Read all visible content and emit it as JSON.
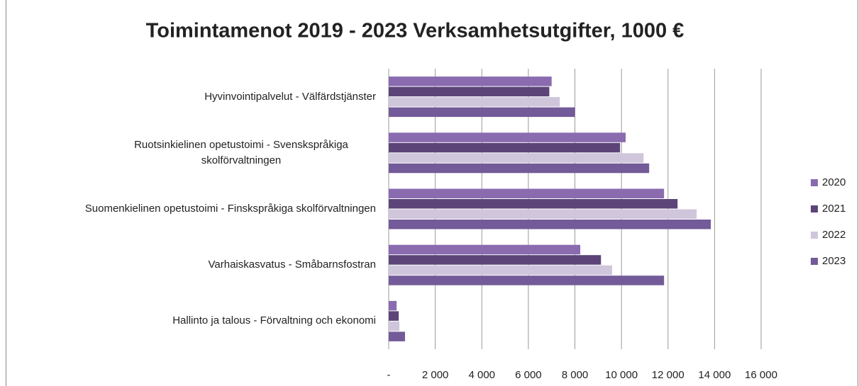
{
  "chart_data": {
    "type": "bar",
    "orientation": "horizontal",
    "title": "Toimintamenot 2019 - 2023 Verksamhetsutgifter, 1000 €",
    "categories": [
      "Hyvinvointipalvelut - Välfärdstjänster",
      "Ruotsinkielinen opetustoimi - Svenskspråkiga skolförvaltningen",
      "Suomenkielinen opetustoimi - Finskspråkiga skolförvaltningen",
      "Varhaiskasvatus - Småbarnsfostran",
      "Hallinto ja talous - Förvaltning och ekonomi"
    ],
    "series": [
      {
        "name": "2020",
        "color": "#8a6bb0",
        "values": [
          7000,
          10180,
          11830,
          8230,
          340
        ]
      },
      {
        "name": "2021",
        "color": "#5c4478",
        "values": [
          6900,
          9940,
          12410,
          9120,
          430
        ]
      },
      {
        "name": "2022",
        "color": "#cfc6dc",
        "values": [
          7350,
          10950,
          13230,
          9600,
          460
        ]
      },
      {
        "name": "2023",
        "color": "#735a98",
        "values": [
          8000,
          11190,
          13840,
          11830,
          700
        ]
      }
    ],
    "xlim": [
      0,
      16000
    ],
    "xticks": [
      {
        "value": 0,
        "label": "-"
      },
      {
        "value": 2000,
        "label": "2 000"
      },
      {
        "value": 4000,
        "label": "4 000"
      },
      {
        "value": 6000,
        "label": "6 000"
      },
      {
        "value": 8000,
        "label": "8 000"
      },
      {
        "value": 10000,
        "label": "10 000"
      },
      {
        "value": 12000,
        "label": "12 000"
      },
      {
        "value": 14000,
        "label": "14 000"
      },
      {
        "value": 16000,
        "label": "16 000"
      }
    ],
    "grid": true,
    "legend": "right"
  }
}
